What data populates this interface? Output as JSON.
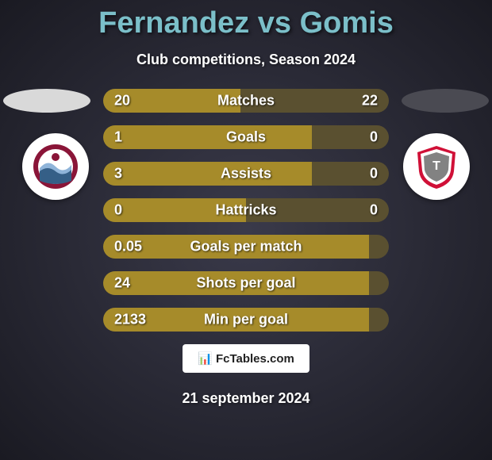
{
  "title": "Fernandez vs Gomis",
  "subtitle": "Club competitions, Season 2024",
  "footer_logo": "📊 FcTables.com",
  "footer_date": "21 september 2024",
  "colors": {
    "left_bar": "#a68b2a",
    "right_bar": "#5a5030",
    "left_ellipse": "#d9d9d9",
    "right_ellipse": "#4a4a52",
    "title": "#7bbfc9"
  },
  "player_left": {
    "badge_bg": "#ffffff",
    "badge_primary": "#8a1538",
    "badge_secondary": "#8fb4d9"
  },
  "player_right": {
    "badge_bg": "#ffffff",
    "badge_primary": "#d01037",
    "badge_secondary": "#828282"
  },
  "bars": [
    {
      "label": "Matches",
      "left_val": "20",
      "right_val": "22",
      "left_pct": 48,
      "right_pct": 52
    },
    {
      "label": "Goals",
      "left_val": "1",
      "right_val": "0",
      "left_pct": 73,
      "right_pct": 27
    },
    {
      "label": "Assists",
      "left_val": "3",
      "right_val": "0",
      "left_pct": 73,
      "right_pct": 27
    },
    {
      "label": "Hattricks",
      "left_val": "0",
      "right_val": "0",
      "left_pct": 50,
      "right_pct": 50
    },
    {
      "label": "Goals per match",
      "left_val": "0.05",
      "right_val": "",
      "left_pct": 93,
      "right_pct": 7
    },
    {
      "label": "Shots per goal",
      "left_val": "24",
      "right_val": "",
      "left_pct": 93,
      "right_pct": 7
    },
    {
      "label": "Min per goal",
      "left_val": "2133",
      "right_val": "",
      "left_pct": 93,
      "right_pct": 7
    }
  ]
}
